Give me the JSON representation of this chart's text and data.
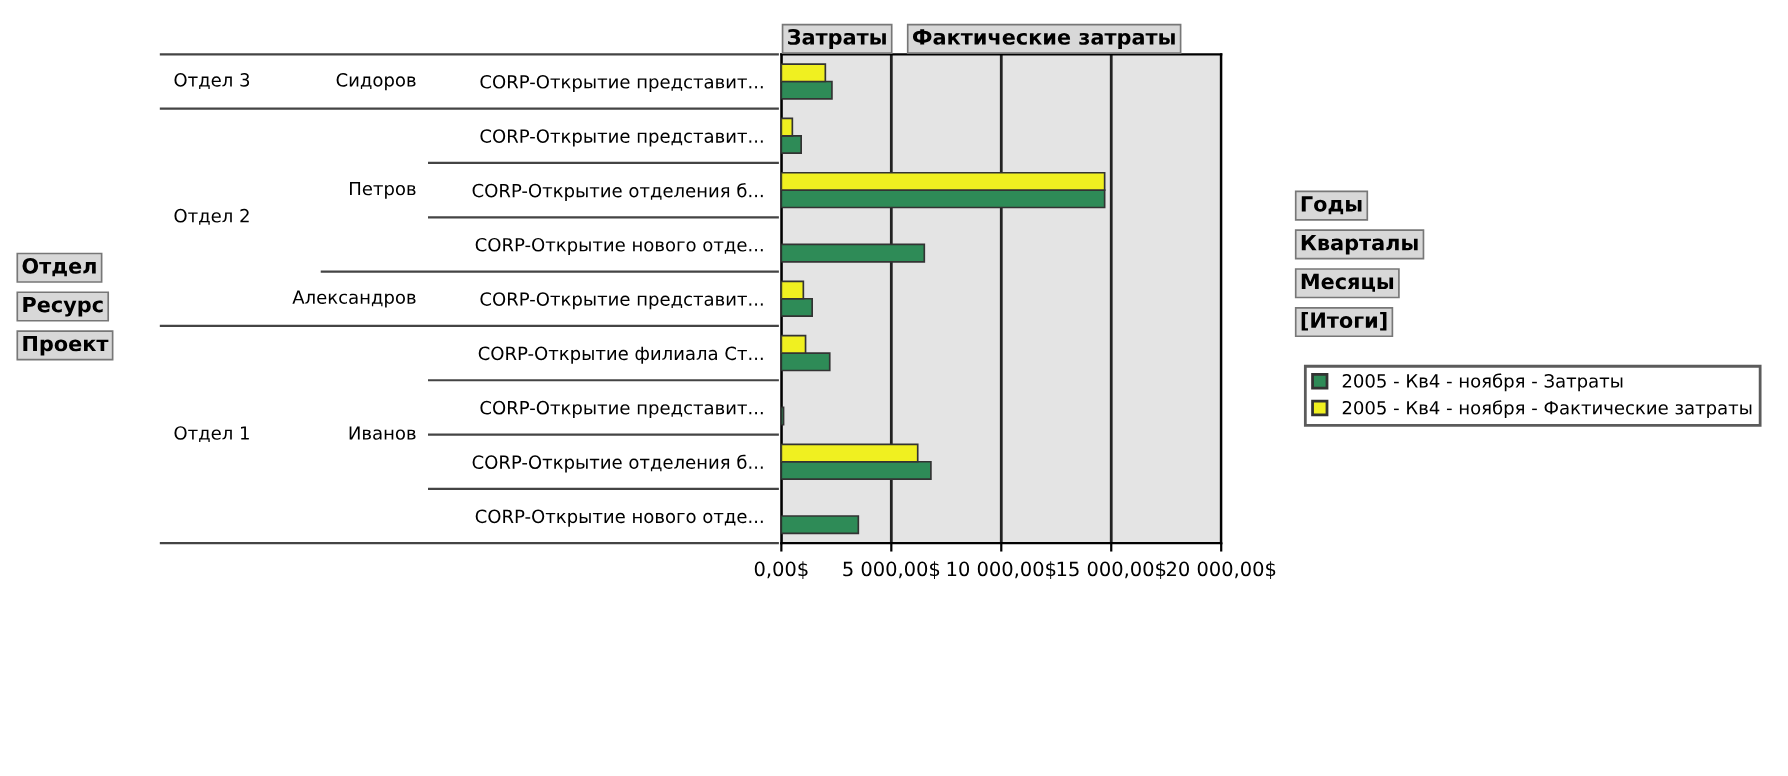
{
  "chart_data": {
    "type": "bar",
    "orientation": "horizontal",
    "categories": [
      "CORP-Открытие представит...",
      "CORP-Открытие представит...",
      "CORP-Открытие отделения б...",
      "CORP-Открытие нового отде...",
      "CORP-Открытие представит...",
      "CORP-Открытие филиала Ст...",
      "CORP-Открытие представит...",
      "CORP-Открытие отделения б...",
      "CORP-Открытие нового отде..."
    ],
    "series": [
      {
        "name": "2005 - Кв4 - ноября - Затраты",
        "color": "#2e8b57",
        "values": [
          2300,
          900,
          14700,
          6500,
          1400,
          2200,
          100,
          6800,
          3500
        ]
      },
      {
        "name": "2005 - Кв4 - ноября - Фактические затраты",
        "color": "#f0f020",
        "values": [
          2000,
          500,
          14700,
          null,
          1000,
          1100,
          null,
          6200,
          null
        ]
      }
    ],
    "xlim": [
      0,
      20000
    ],
    "xticks": [
      {
        "value": 0,
        "label": "0,00$"
      },
      {
        "value": 5000,
        "label": "5 000,00$"
      },
      {
        "value": 10000,
        "label": "10 000,00$"
      },
      {
        "value": 15000,
        "label": "15 000,00$"
      },
      {
        "value": 20000,
        "label": "20 000,00$"
      }
    ],
    "grid": "x",
    "legend": "right",
    "annotations": [
      "Отдел 3",
      "Сидоров",
      "Отдел 2",
      "Петров",
      "Александров",
      "Отдел 1",
      "Иванов",
      "Отдел",
      "Ресурс",
      "Проект",
      "Затраты",
      "Фактические затраты",
      "Годы",
      "Кварталы",
      "Месяцы",
      "[Итоги]"
    ]
  }
}
